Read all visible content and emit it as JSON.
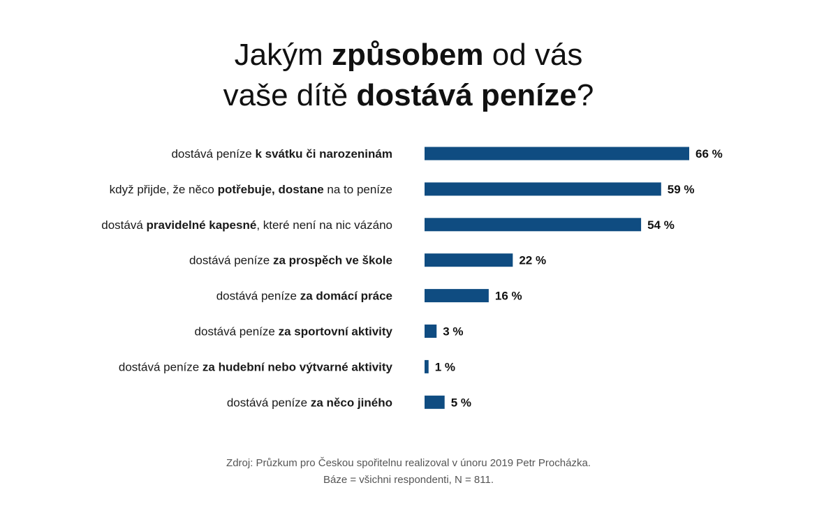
{
  "title": {
    "line1": [
      {
        "text": "Jakým ",
        "bold": false
      },
      {
        "text": "způsobem",
        "bold": true
      },
      {
        "text": " od vás",
        "bold": false
      }
    ],
    "line2": [
      {
        "text": "vaše dítě ",
        "bold": false
      },
      {
        "text": "dostává peníze",
        "bold": true
      },
      {
        "text": "?",
        "bold": false
      }
    ]
  },
  "chart_data": {
    "type": "bar",
    "orientation": "horizontal",
    "xlim": [
      0,
      100
    ],
    "grid": false,
    "legend": "none",
    "bar_color": "#0f4c81",
    "value_suffix": " %",
    "categories": [
      [
        {
          "text": "dostává peníze ",
          "bold": false
        },
        {
          "text": "k svátku či narozeninám",
          "bold": true
        }
      ],
      [
        {
          "text": "když přijde, že něco ",
          "bold": false
        },
        {
          "text": "potřebuje, dostane",
          "bold": true
        },
        {
          "text": " na to peníze",
          "bold": false
        }
      ],
      [
        {
          "text": "dostává ",
          "bold": false
        },
        {
          "text": "pravidelné kapesné",
          "bold": true
        },
        {
          "text": ", které není na nic vázáno",
          "bold": false
        }
      ],
      [
        {
          "text": "dostává peníze ",
          "bold": false
        },
        {
          "text": "za prospěch ve škole",
          "bold": true
        }
      ],
      [
        {
          "text": "dostává peníze ",
          "bold": false
        },
        {
          "text": "za domácí práce",
          "bold": true
        }
      ],
      [
        {
          "text": "dostává peníze ",
          "bold": false
        },
        {
          "text": "za sportovní aktivity",
          "bold": true
        }
      ],
      [
        {
          "text": "dostává peníze ",
          "bold": false
        },
        {
          "text": "za hudební nebo výtvarné aktivity",
          "bold": true
        }
      ],
      [
        {
          "text": "dostává peníze ",
          "bold": false
        },
        {
          "text": "za něco jiného",
          "bold": true
        }
      ]
    ],
    "values": [
      66,
      59,
      54,
      22,
      16,
      3,
      1,
      5
    ]
  },
  "source": {
    "line1": "Zdroj: Průzkum pro Českou spořitelnu realizoval v únoru 2019 Petr Procházka.",
    "line2": "Báze = všichni respondenti, N = 811."
  }
}
